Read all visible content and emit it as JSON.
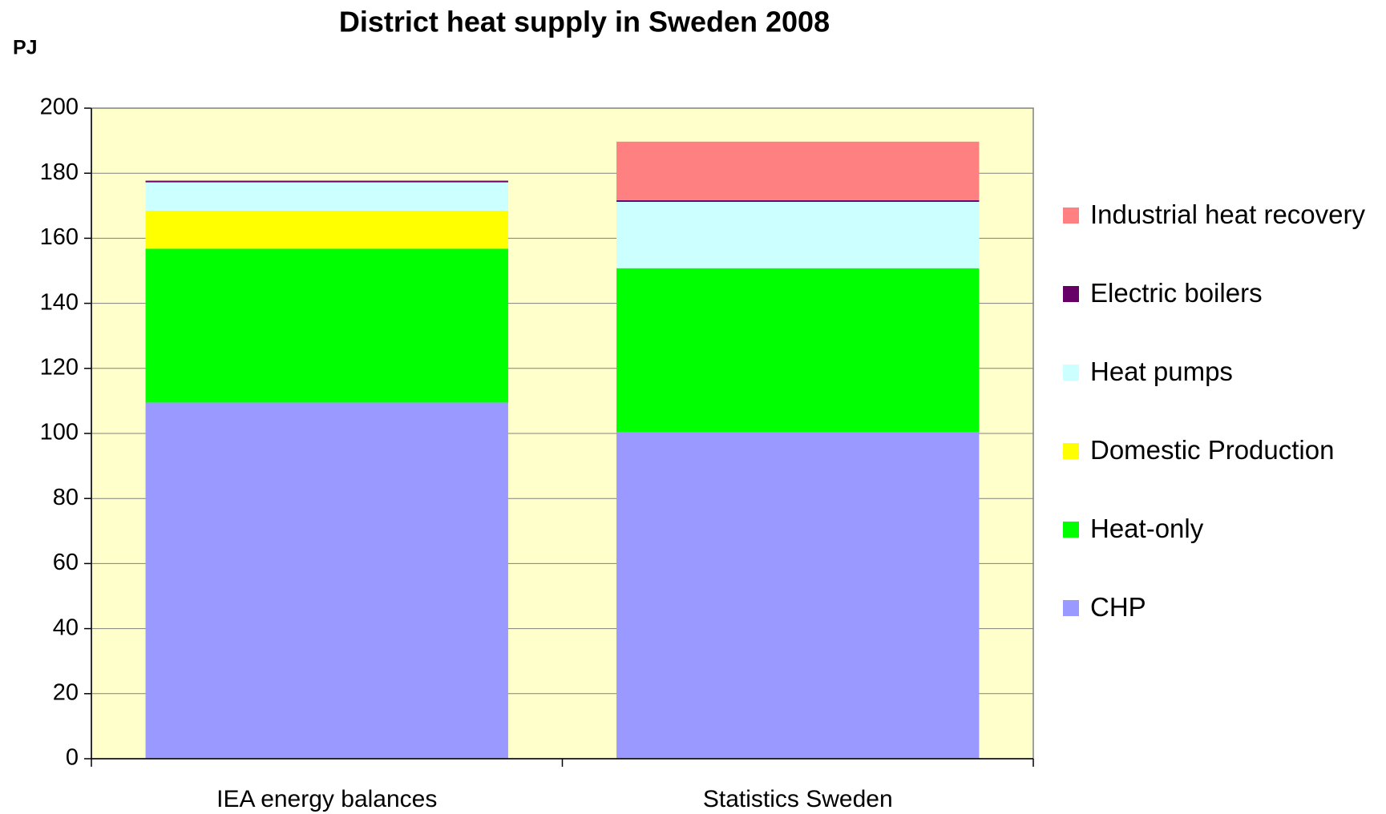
{
  "chart_data": {
    "type": "stacked_bar",
    "title": "District heat supply in Sweden 2008",
    "y_label": "PJ",
    "categories": [
      "IEA energy balances",
      "Statistics Sweden"
    ],
    "series": [
      {
        "name": "CHP",
        "color": "#9999ff",
        "values": [
          109.5,
          100.5
        ]
      },
      {
        "name": "Heat-only",
        "color": "#00ff00",
        "values": [
          47.3,
          50.3
        ]
      },
      {
        "name": "Domestic Production",
        "color": "#ffff00",
        "values": [
          11.7,
          0
        ]
      },
      {
        "name": "Heat pumps",
        "color": "#ccffff",
        "values": [
          8.7,
          20.4
        ]
      },
      {
        "name": "Electric boilers",
        "color": "#660066",
        "values": [
          0.5,
          0.5
        ]
      },
      {
        "name": "Industrial heat recovery",
        "color": "#ff8080",
        "values": [
          0,
          18
        ]
      }
    ],
    "ylim": [
      0,
      200
    ],
    "yticks": [
      0,
      20,
      40,
      60,
      80,
      100,
      120,
      140,
      160,
      180,
      200
    ],
    "grid": true,
    "plot_background": "#ffffcc",
    "legend": "right"
  }
}
